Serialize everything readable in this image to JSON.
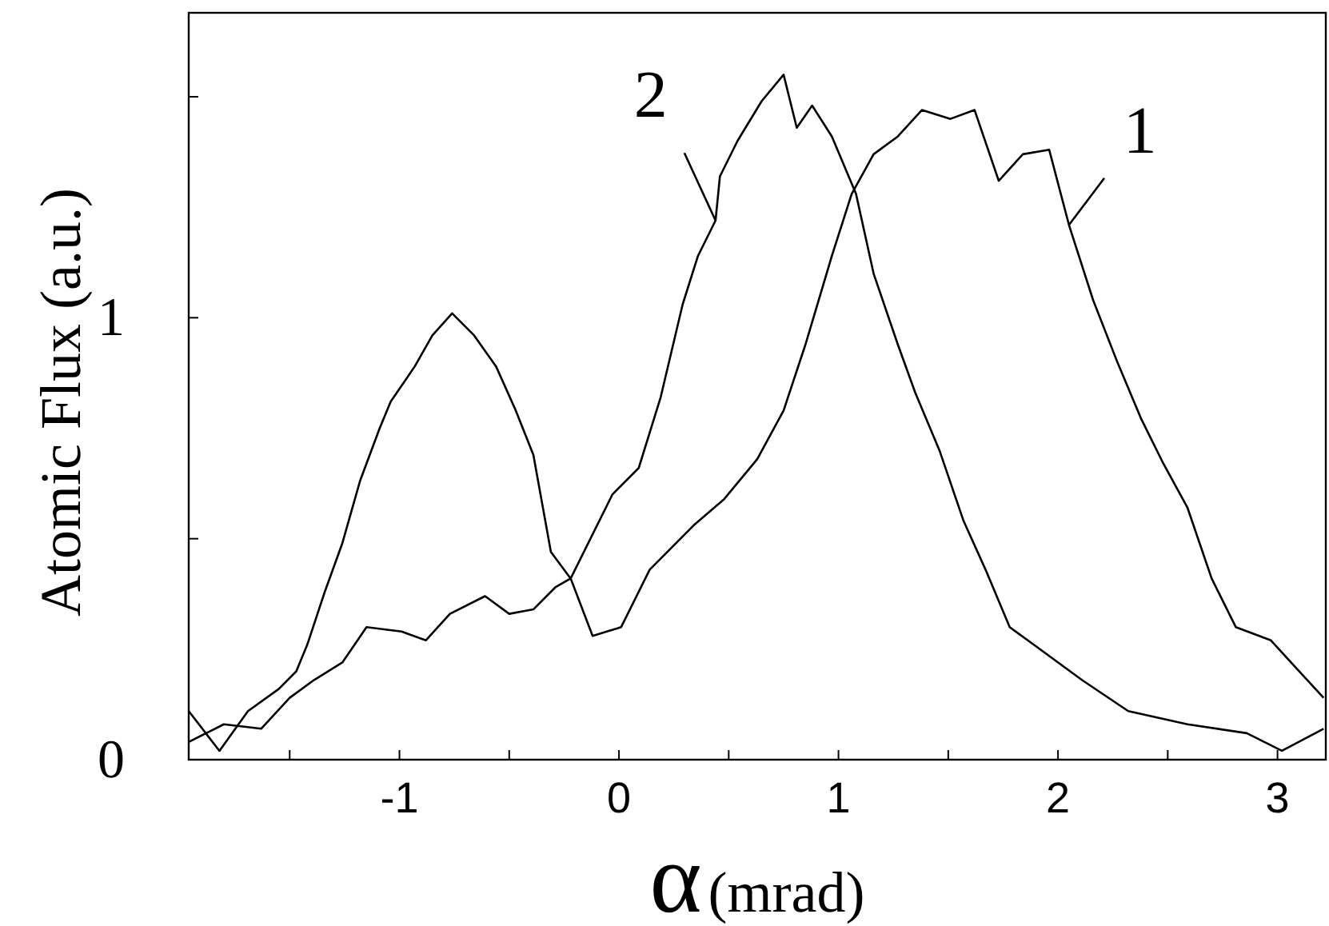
{
  "chart_data": {
    "type": "line",
    "xlabel": "α(mrad)",
    "ylabel": "Atomic Flux (a.u.)",
    "xlim": [
      -1.96,
      3.22
    ],
    "ylim": [
      0,
      1.69
    ],
    "xticks": [
      {
        "value": -1.5,
        "label": null
      },
      -1,
      {
        "value": -0.5,
        "label": null
      },
      0,
      {
        "value": 0.5,
        "label": null
      },
      1,
      {
        "value": 1.5,
        "label": null
      },
      2,
      {
        "value": 2.5,
        "label": null
      },
      3
    ],
    "yticks": [
      0,
      {
        "value": 0.5,
        "label": null
      },
      1,
      {
        "value": 1.5,
        "label": null
      }
    ],
    "grid": false,
    "legend": false,
    "marker": "none",
    "line_style": "solid",
    "series": [
      {
        "name": "1",
        "color": "#000000",
        "x": [
          -1.96,
          -1.82,
          -1.69,
          -1.55,
          -1.47,
          -1.42,
          -1.34,
          -1.26,
          -1.18,
          -1.09,
          -1.04,
          -0.93,
          -0.85,
          -0.76,
          -0.66,
          -0.56,
          -0.47,
          -0.39,
          -0.31,
          -0.22,
          -0.12,
          0.01,
          0.14,
          0.34,
          0.48,
          0.63,
          0.75,
          0.85,
          0.97,
          1.06,
          1.16,
          1.27,
          1.38,
          1.51,
          1.62,
          1.73,
          1.84,
          1.96,
          2.05,
          2.16,
          2.27,
          2.38,
          2.48,
          2.59,
          2.7,
          2.81,
          2.97,
          3.08,
          3.21
        ],
        "values": [
          0.11,
          0.02,
          0.11,
          0.16,
          0.2,
          0.26,
          0.38,
          0.49,
          0.63,
          0.75,
          0.81,
          0.89,
          0.96,
          1.01,
          0.96,
          0.89,
          0.79,
          0.69,
          0.47,
          0.41,
          0.28,
          0.3,
          0.43,
          0.53,
          0.59,
          0.68,
          0.79,
          0.94,
          1.14,
          1.28,
          1.37,
          1.41,
          1.47,
          1.45,
          1.47,
          1.31,
          1.37,
          1.38,
          1.21,
          1.04,
          0.9,
          0.77,
          0.67,
          0.57,
          0.41,
          0.3,
          0.27,
          0.21,
          0.14
        ]
      },
      {
        "name": "2",
        "color": "#000000",
        "x": [
          -1.96,
          -1.8,
          -1.63,
          -1.5,
          -1.39,
          -1.26,
          -1.15,
          -0.99,
          -0.88,
          -0.77,
          -0.61,
          -0.5,
          -0.39,
          -0.29,
          -0.22,
          -0.03,
          0.09,
          0.19,
          0.29,
          0.36,
          0.44,
          0.46,
          0.54,
          0.65,
          0.75,
          0.81,
          0.88,
          0.97,
          1.08,
          1.16,
          1.27,
          1.35,
          1.46,
          1.57,
          1.67,
          1.78,
          1.89,
          2.11,
          2.32,
          2.59,
          2.86,
          3.02,
          3.21
        ],
        "values": [
          0.04,
          0.08,
          0.07,
          0.14,
          0.18,
          0.22,
          0.3,
          0.29,
          0.27,
          0.33,
          0.37,
          0.33,
          0.34,
          0.39,
          0.41,
          0.6,
          0.66,
          0.82,
          1.03,
          1.14,
          1.22,
          1.32,
          1.4,
          1.49,
          1.55,
          1.43,
          1.48,
          1.41,
          1.28,
          1.1,
          0.94,
          0.83,
          0.7,
          0.54,
          0.43,
          0.3,
          0.26,
          0.18,
          0.11,
          0.08,
          0.06,
          0.02,
          0.07
        ]
      }
    ]
  }
}
